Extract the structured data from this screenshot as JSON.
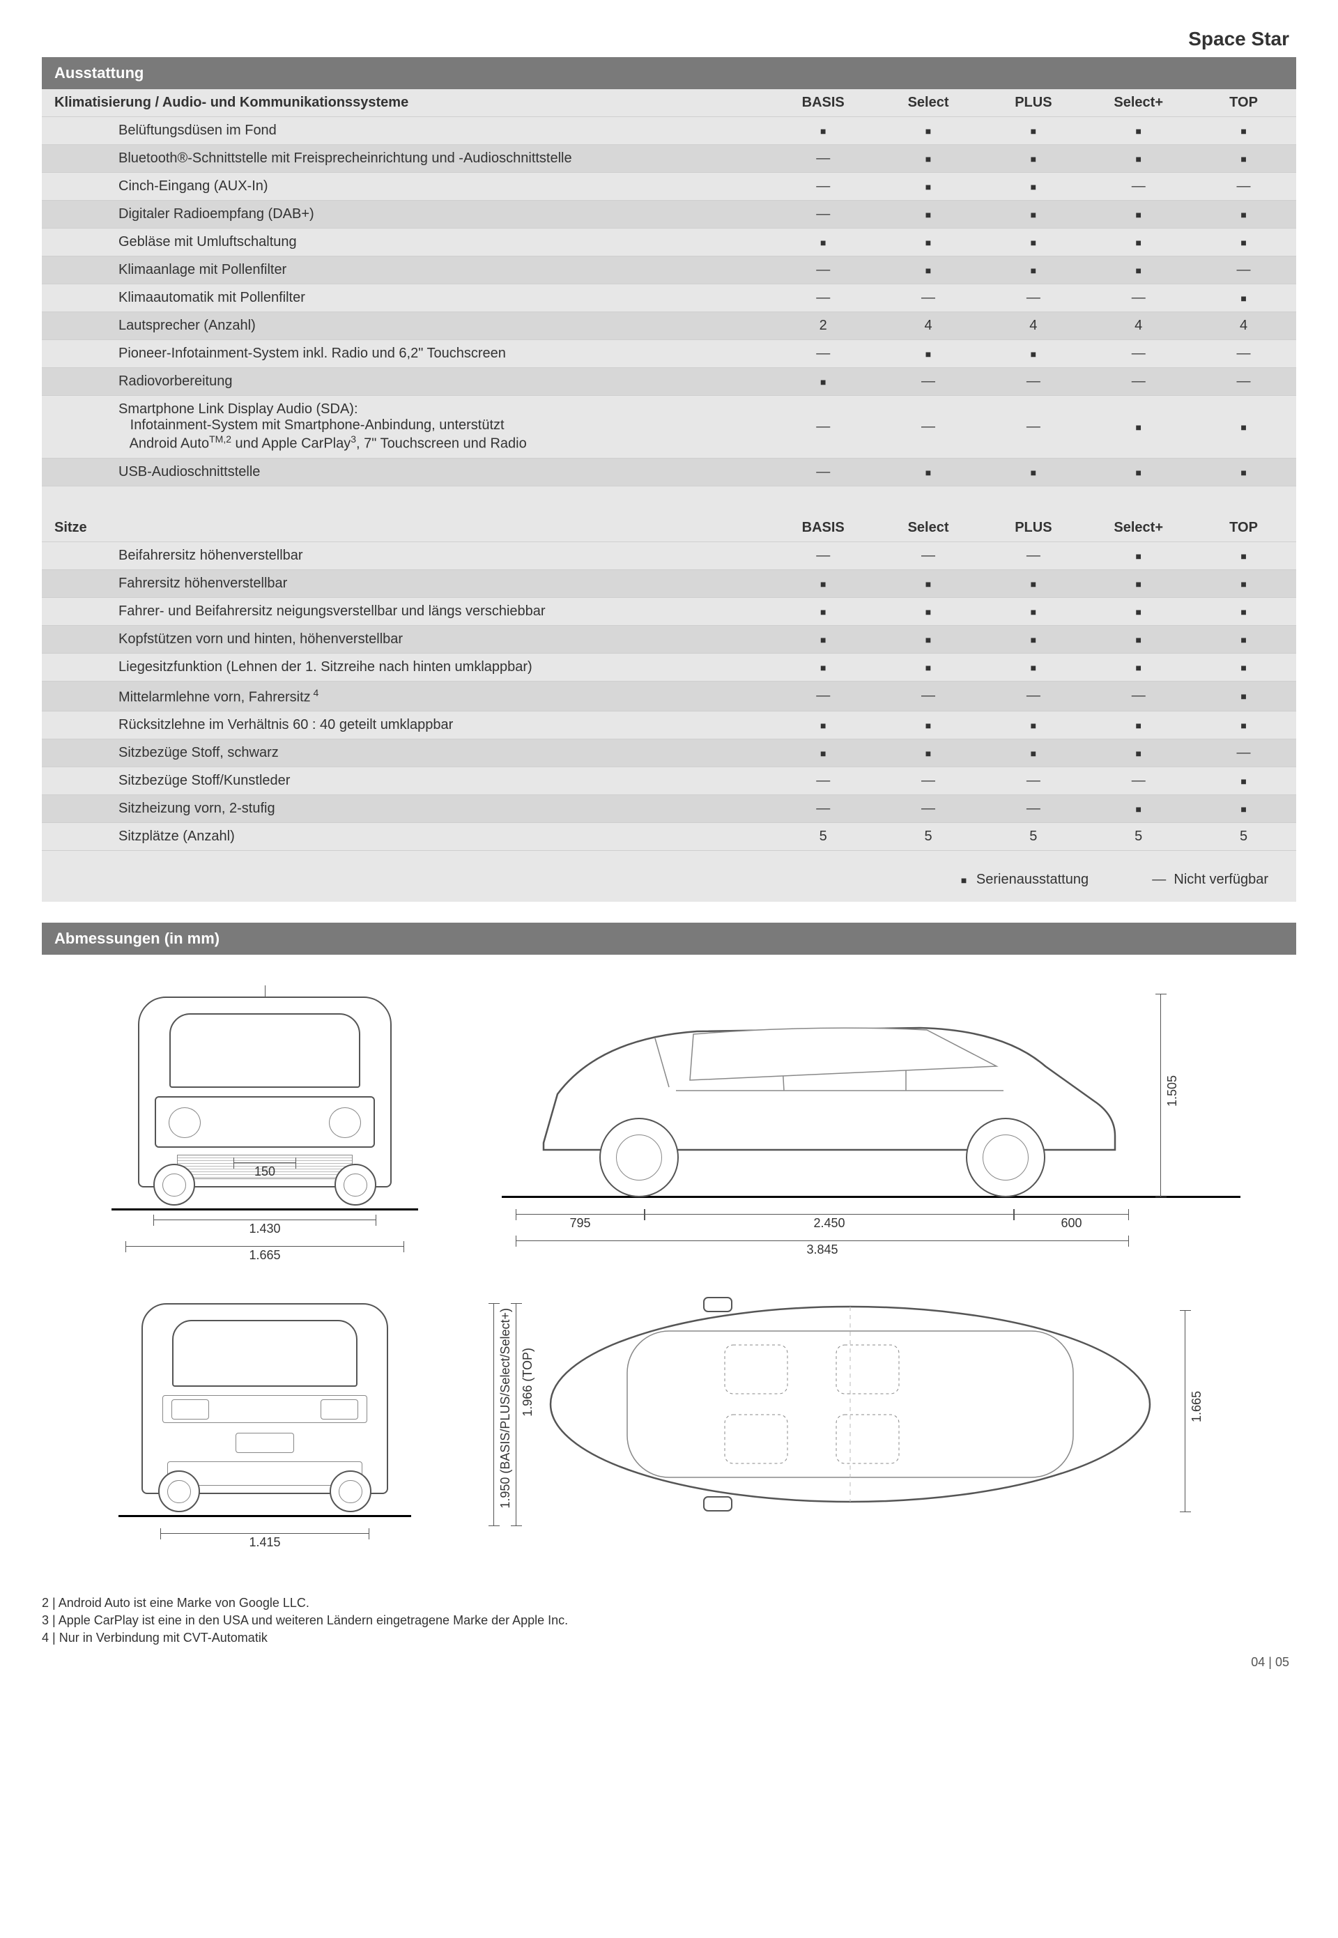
{
  "model": "Space Star",
  "section_ausstattung": "Ausstattung",
  "section_abmessungen": "Abmessungen (in mm)",
  "trims": [
    "BASIS",
    "Select",
    "PLUS",
    "Select+",
    "TOP"
  ],
  "groups": [
    {
      "title": "Klimatisierung / Audio- und Kommunikationssysteme",
      "rows": [
        {
          "label": "Belüftungsdüsen im Fond",
          "vals": [
            "■",
            "■",
            "■",
            "■",
            "■"
          ]
        },
        {
          "label": "Bluetooth®-Schnittstelle mit Freisprecheinrichtung und -Audioschnittstelle",
          "vals": [
            "—",
            "■",
            "■",
            "■",
            "■"
          ]
        },
        {
          "label": "Cinch-Eingang (AUX-In)",
          "vals": [
            "—",
            "■",
            "■",
            "—",
            "—"
          ]
        },
        {
          "label": "Digitaler Radioempfang (DAB+)",
          "vals": [
            "—",
            "■",
            "■",
            "■",
            "■"
          ]
        },
        {
          "label": "Gebläse mit Umluftschaltung",
          "vals": [
            "■",
            "■",
            "■",
            "■",
            "■"
          ]
        },
        {
          "label": "Klimaanlage mit Pollenfilter",
          "vals": [
            "—",
            "■",
            "■",
            "■",
            "—"
          ]
        },
        {
          "label": "Klimaautomatik mit Pollenfilter",
          "vals": [
            "—",
            "—",
            "—",
            "—",
            "■"
          ]
        },
        {
          "label": "Lautsprecher (Anzahl)",
          "vals": [
            "2",
            "4",
            "4",
            "4",
            "4"
          ]
        },
        {
          "label": "Pioneer-Infotainment-System inkl. Radio und 6,2\" Touchscreen",
          "vals": [
            "—",
            "■",
            "■",
            "—",
            "—"
          ]
        },
        {
          "label": "Radiovorbereitung",
          "vals": [
            "■",
            "—",
            "—",
            "—",
            "—"
          ]
        },
        {
          "label": "Smartphone Link Display Audio (SDA):\n  Infotainment-System mit Smartphone-Anbindung, unterstützt\n  Android Auto™,2 und Apple CarPlay3, 7\" Touchscreen und Radio",
          "vals": [
            "—",
            "—",
            "—",
            "■",
            "■"
          ]
        },
        {
          "label": "USB-Audioschnittstelle",
          "vals": [
            "—",
            "■",
            "■",
            "■",
            "■"
          ]
        }
      ]
    },
    {
      "title": "Sitze",
      "rows": [
        {
          "label": "Beifahrersitz höhenverstellbar",
          "vals": [
            "—",
            "—",
            "—",
            "■",
            "■"
          ]
        },
        {
          "label": "Fahrersitz höhenverstellbar",
          "vals": [
            "■",
            "■",
            "■",
            "■",
            "■"
          ]
        },
        {
          "label": "Fahrer- und Beifahrersitz neigungsverstellbar und längs verschiebbar",
          "vals": [
            "■",
            "■",
            "■",
            "■",
            "■"
          ]
        },
        {
          "label": "Kopfstützen vorn und hinten, höhenverstellbar",
          "vals": [
            "■",
            "■",
            "■",
            "■",
            "■"
          ]
        },
        {
          "label": "Liegesitzfunktion (Lehnen der 1. Sitzreihe nach hinten umklappbar)",
          "vals": [
            "■",
            "■",
            "■",
            "■",
            "■"
          ]
        },
        {
          "label": "Mittelarmlehne vorn, Fahrersitz 4",
          "vals": [
            "—",
            "—",
            "—",
            "—",
            "■"
          ]
        },
        {
          "label": "Rücksitzlehne im Verhältnis 60 : 40 geteilt umklappbar",
          "vals": [
            "■",
            "■",
            "■",
            "■",
            "■"
          ]
        },
        {
          "label": "Sitzbezüge Stoff, schwarz",
          "vals": [
            "■",
            "■",
            "■",
            "■",
            "—"
          ]
        },
        {
          "label": "Sitzbezüge Stoff/Kunstleder",
          "vals": [
            "—",
            "—",
            "—",
            "—",
            "■"
          ]
        },
        {
          "label": "Sitzheizung vorn, 2-stufig",
          "vals": [
            "—",
            "—",
            "—",
            "■",
            "■"
          ]
        },
        {
          "label": "Sitzplätze (Anzahl)",
          "vals": [
            "5",
            "5",
            "5",
            "5",
            "5"
          ]
        }
      ]
    }
  ],
  "legend": {
    "standard": "Serienausstattung",
    "na": "Nicht verfügbar"
  },
  "dims": {
    "front": {
      "track_inner": "150",
      "track": "1.430",
      "overall_width": "1.665"
    },
    "rear": {
      "track": "1.415"
    },
    "side": {
      "front_overhang": "795",
      "wheelbase": "2.450",
      "rear_overhang": "600",
      "length": "3.845",
      "height": "1.505"
    },
    "top": {
      "width": "1.665",
      "turning_basis": "1.950 (BASIS/PLUS/Select/Select+)",
      "turning_top": "1.966 (TOP)"
    }
  },
  "footnotes": [
    "2 | Android Auto ist eine Marke von Google LLC.",
    "3 | Apple CarPlay ist eine in den USA und weiteren Ländern eingetragene Marke der Apple Inc.",
    "4 | Nur in Verbindung mit CVT-Automatik"
  ],
  "pagenum": "04 | 05"
}
